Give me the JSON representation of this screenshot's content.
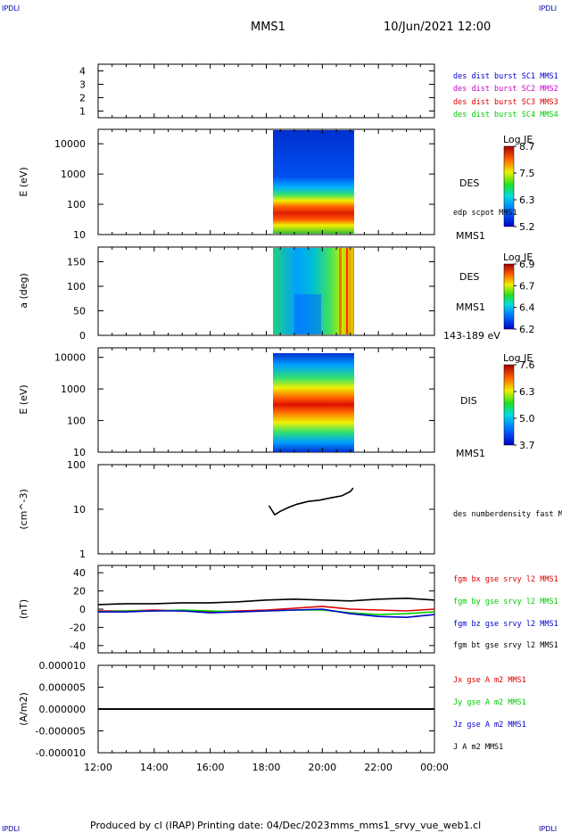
{
  "header": {
    "corner_label": "IPDLI",
    "title": "MMS1",
    "datetime": "10/Jun/2021 12:00"
  },
  "footer": {
    "produced_by": "Produced by cl (IRAP)",
    "printing_date": "Printing date: 04/Dec/2023",
    "filename": "mms_mms1_srvy_vue_web1.cl"
  },
  "time_axis": {
    "ticks": [
      "12:00",
      "14:00",
      "16:00",
      "18:00",
      "20:00",
      "22:00",
      "00:00"
    ],
    "start_hours": 12,
    "end_hours": 24
  },
  "colors": {
    "blue": "#0000cc",
    "magenta": "#cc00cc",
    "red": "#dd0000",
    "green": "#00cc00",
    "black": "#000000"
  },
  "chart_data": [
    {
      "type": "bar",
      "ylim": [
        0.5,
        4.5
      ],
      "yticks": [
        "1",
        "2",
        "3",
        "4"
      ],
      "legend": [
        {
          "label": "des dist burst SC1 MMS1",
          "color": "#0000cc"
        },
        {
          "label": "des dist burst SC2 MMS2",
          "color": "#cc00cc"
        },
        {
          "label": "des dist burst SC3 MMS3",
          "color": "#dd0000"
        },
        {
          "label": "des dist burst SC4 MMS4",
          "color": "#00cc00"
        }
      ]
    },
    {
      "type": "heatmap",
      "ylabel": "E (eV)",
      "yscale": "log",
      "ylim": [
        10,
        30000
      ],
      "yticks": [
        "10",
        "100",
        "1000",
        "10000"
      ],
      "data_time_range": [
        "18:12",
        "21:08"
      ],
      "side_labels": [
        "DES",
        "edp scpot MMS1",
        "MMS1"
      ],
      "colorbar": {
        "title": "Log JE",
        "ticks": [
          "8.7",
          "7.5",
          "6.3",
          "5.2"
        ],
        "range": [
          5.2,
          8.7
        ]
      }
    },
    {
      "type": "heatmap",
      "ylabel": "a (deg)",
      "ylim": [
        0,
        180
      ],
      "yticks": [
        "0",
        "50",
        "100",
        "150"
      ],
      "data_time_range": [
        "18:12",
        "21:08"
      ],
      "side_labels": [
        "DES",
        "MMS1",
        "143-189 eV"
      ],
      "colorbar": {
        "title": "Log JE",
        "ticks": [
          "6.9",
          "6.7",
          "6.4",
          "6.2"
        ],
        "range": [
          6.2,
          6.9
        ]
      }
    },
    {
      "type": "heatmap",
      "ylabel": "E (eV)",
      "yscale": "log",
      "ylim": [
        10,
        20000
      ],
      "yticks": [
        "10",
        "100",
        "1000",
        "10000"
      ],
      "data_time_range": [
        "18:12",
        "21:08"
      ],
      "side_labels": [
        "DIS",
        "MMS1"
      ],
      "colorbar": {
        "title": "Log JE",
        "ticks": [
          "7.6",
          "6.3",
          "5.0",
          "3.7"
        ],
        "range": [
          3.7,
          7.6
        ]
      }
    },
    {
      "type": "line",
      "ylabel": "(cm^-3)",
      "yscale": "log",
      "ylim": [
        1,
        100
      ],
      "yticks": [
        "1",
        "10",
        "100"
      ],
      "series": [
        {
          "name": "des numberdensity fast M",
          "color": "#000000",
          "x": [
            18.1,
            18.3,
            18.5,
            18.8,
            19.1,
            19.5,
            19.9,
            20.3,
            20.7,
            21.0,
            21.1
          ],
          "values": [
            12,
            7.5,
            9,
            11,
            13,
            15,
            16,
            18,
            20,
            25,
            30
          ]
        }
      ]
    },
    {
      "type": "line",
      "ylabel": "(nT)",
      "ylim": [
        -48,
        48
      ],
      "yticks": [
        "40",
        "20",
        "0",
        "-20",
        "-40"
      ],
      "series": [
        {
          "name": "fgm bx gse srvy l2 MMS1",
          "color": "#dd0000",
          "x": [
            12,
            13,
            14,
            15,
            16,
            17,
            18,
            19,
            20,
            21,
            22,
            23,
            24
          ],
          "values": [
            -2,
            -2,
            -1,
            -2,
            -3,
            -2,
            -1,
            1,
            3,
            0,
            -1,
            -2,
            0
          ]
        },
        {
          "name": "fgm by gse srvy l2 MMS1",
          "color": "#00cc00",
          "x": [
            12,
            13,
            14,
            15,
            16,
            17,
            18,
            19,
            20,
            21,
            22,
            23,
            24
          ],
          "values": [
            -3,
            -2,
            -2,
            -1,
            -2,
            -3,
            -2,
            -1,
            -1,
            -4,
            -6,
            -5,
            -3
          ]
        },
        {
          "name": "fgm bz gse srvy l2 MMS1",
          "color": "#0000cc",
          "x": [
            12,
            13,
            14,
            15,
            16,
            17,
            18,
            19,
            20,
            21,
            22,
            23,
            24
          ],
          "values": [
            -3,
            -3,
            -2,
            -2,
            -4,
            -3,
            -2,
            -1,
            0,
            -5,
            -8,
            -9,
            -6
          ]
        },
        {
          "name": "fgm bt gse srvy l2 MMS1",
          "color": "#000000",
          "x": [
            12,
            13,
            14,
            15,
            16,
            17,
            18,
            19,
            20,
            21,
            22,
            23,
            24
          ],
          "values": [
            5,
            6,
            6,
            7,
            7,
            8,
            10,
            11,
            10,
            9,
            11,
            12,
            10
          ]
        }
      ]
    },
    {
      "type": "line",
      "ylabel": "(A/m2)",
      "ylim": [
        -1e-05,
        1e-05
      ],
      "yticks": [
        "0.000010",
        "0.000005",
        "0.000000",
        "-0.000005",
        "-0.000010"
      ],
      "series": [
        {
          "name": "Jx gse A m2 MMS1",
          "color": "#dd0000",
          "x": [
            12,
            24
          ],
          "values": [
            0,
            0
          ]
        },
        {
          "name": "Jy gse A m2 MMS1",
          "color": "#00cc00",
          "x": [
            12,
            24
          ],
          "values": [
            0,
            0
          ]
        },
        {
          "name": "Jz gse A m2 MMS1",
          "color": "#0000cc",
          "x": [
            12,
            24
          ],
          "values": [
            0,
            0
          ]
        },
        {
          "name": "J A m2 MMS1",
          "color": "#000000",
          "x": [
            12,
            24
          ],
          "values": [
            0,
            0
          ]
        }
      ]
    }
  ]
}
